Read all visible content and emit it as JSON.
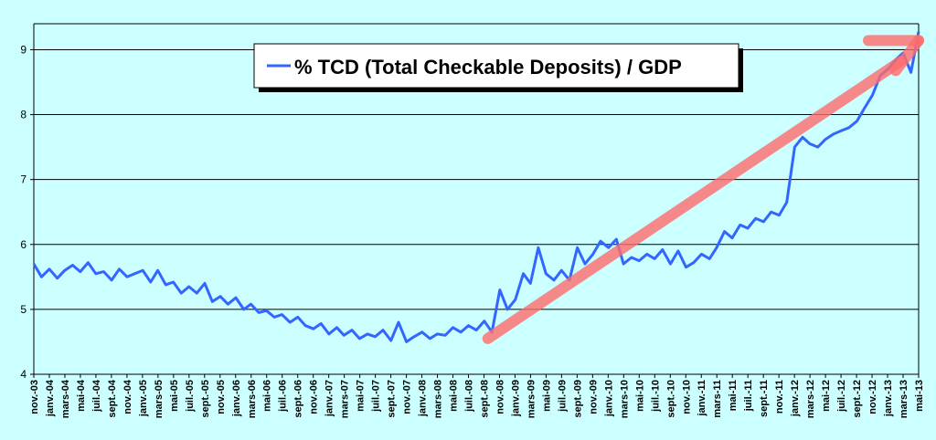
{
  "chart_data": {
    "type": "line",
    "title": "",
    "xlabel": "",
    "ylabel": "",
    "ylim": [
      4,
      9.4
    ],
    "yticks": [
      4,
      5,
      6,
      7,
      8,
      9
    ],
    "grid": "horizontal",
    "legend": {
      "placement": "top-center",
      "label": "% TCD (Total Checkable Deposits) / GDP",
      "color": "#3366ff"
    },
    "x_start": "2003-11",
    "x_end": "2013-05",
    "xtick_labels": [
      "nov.-03",
      "janv.-04",
      "mars-04",
      "mai-04",
      "juil.-04",
      "sept.-04",
      "nov.-04",
      "janv.-05",
      "mars-05",
      "mai-05",
      "juil.-05",
      "sept.-05",
      "nov.-05",
      "janv.-06",
      "mars-06",
      "mai-06",
      "juil.-06",
      "sept.-06",
      "nov.-06",
      "janv.-07",
      "mars-07",
      "mai-07",
      "juil.-07",
      "sept.-07",
      "nov.-07",
      "janv.-08",
      "mars-08",
      "mai-08",
      "juil.-08",
      "sept.-08",
      "nov.-08",
      "janv.-09",
      "mars-09",
      "mai-09",
      "juil.-09",
      "sept.-09",
      "nov.-09",
      "janv.-10",
      "mars-10",
      "mai-10",
      "juil.-10",
      "sept.-10",
      "nov.-10",
      "janv.-11",
      "mars-11",
      "mai-11",
      "juil.-11",
      "sept.-11",
      "nov.-11",
      "janv.-12",
      "mars-12",
      "mai-12",
      "juil.-12",
      "sept.-12",
      "nov.-12",
      "janv.-13",
      "mars-13",
      "mai-13"
    ],
    "series": [
      {
        "name": "% TCD (Total Checkable Deposits) / GDP",
        "color": "#3366ff",
        "points": [
          [
            "2003-11-01",
            5.7
          ],
          [
            "2003-12-01",
            5.5
          ],
          [
            "2004-01-01",
            5.62
          ],
          [
            "2004-02-01",
            5.48
          ],
          [
            "2004-03-01",
            5.6
          ],
          [
            "2004-04-01",
            5.68
          ],
          [
            "2004-05-01",
            5.58
          ],
          [
            "2004-06-01",
            5.72
          ],
          [
            "2004-07-01",
            5.55
          ],
          [
            "2004-08-01",
            5.58
          ],
          [
            "2004-09-01",
            5.45
          ],
          [
            "2004-10-01",
            5.62
          ],
          [
            "2004-11-01",
            5.5
          ],
          [
            "2004-12-01",
            5.55
          ],
          [
            "2005-01-01",
            5.6
          ],
          [
            "2005-02-01",
            5.42
          ],
          [
            "2005-03-01",
            5.6
          ],
          [
            "2005-04-01",
            5.38
          ],
          [
            "2005-05-01",
            5.42
          ],
          [
            "2005-06-01",
            5.25
          ],
          [
            "2005-07-01",
            5.35
          ],
          [
            "2005-08-01",
            5.25
          ],
          [
            "2005-09-01",
            5.4
          ],
          [
            "2005-10-01",
            5.12
          ],
          [
            "2005-11-01",
            5.2
          ],
          [
            "2005-12-01",
            5.08
          ],
          [
            "2006-01-01",
            5.18
          ],
          [
            "2006-02-01",
            5.0
          ],
          [
            "2006-03-01",
            5.08
          ],
          [
            "2006-04-01",
            4.95
          ],
          [
            "2006-05-01",
            4.98
          ],
          [
            "2006-06-01",
            4.88
          ],
          [
            "2006-07-01",
            4.92
          ],
          [
            "2006-08-01",
            4.8
          ],
          [
            "2006-09-01",
            4.88
          ],
          [
            "2006-10-01",
            4.75
          ],
          [
            "2006-11-01",
            4.7
          ],
          [
            "2006-12-01",
            4.78
          ],
          [
            "2007-01-01",
            4.62
          ],
          [
            "2007-02-01",
            4.72
          ],
          [
            "2007-03-01",
            4.6
          ],
          [
            "2007-04-01",
            4.68
          ],
          [
            "2007-05-01",
            4.55
          ],
          [
            "2007-06-01",
            4.62
          ],
          [
            "2007-07-01",
            4.58
          ],
          [
            "2007-08-01",
            4.68
          ],
          [
            "2007-09-01",
            4.52
          ],
          [
            "2007-10-01",
            4.8
          ],
          [
            "2007-11-01",
            4.5
          ],
          [
            "2007-12-01",
            4.58
          ],
          [
            "2008-01-01",
            4.65
          ],
          [
            "2008-02-01",
            4.55
          ],
          [
            "2008-03-01",
            4.62
          ],
          [
            "2008-04-01",
            4.6
          ],
          [
            "2008-05-01",
            4.72
          ],
          [
            "2008-06-01",
            4.65
          ],
          [
            "2008-07-01",
            4.75
          ],
          [
            "2008-08-01",
            4.68
          ],
          [
            "2008-09-01",
            4.82
          ],
          [
            "2008-10-01",
            4.65
          ],
          [
            "2008-11-01",
            5.3
          ],
          [
            "2008-12-01",
            5.0
          ],
          [
            "2009-01-01",
            5.15
          ],
          [
            "2009-02-01",
            5.55
          ],
          [
            "2009-03-01",
            5.4
          ],
          [
            "2009-04-01",
            5.95
          ],
          [
            "2009-05-01",
            5.55
          ],
          [
            "2009-06-01",
            5.45
          ],
          [
            "2009-07-01",
            5.6
          ],
          [
            "2009-08-01",
            5.45
          ],
          [
            "2009-09-01",
            5.95
          ],
          [
            "2009-10-01",
            5.7
          ],
          [
            "2009-11-01",
            5.85
          ],
          [
            "2009-12-01",
            6.05
          ],
          [
            "2010-01-01",
            5.95
          ],
          [
            "2010-02-01",
            6.08
          ],
          [
            "2010-03-01",
            5.7
          ],
          [
            "2010-04-01",
            5.8
          ],
          [
            "2010-05-01",
            5.75
          ],
          [
            "2010-06-01",
            5.85
          ],
          [
            "2010-07-01",
            5.78
          ],
          [
            "2010-08-01",
            5.92
          ],
          [
            "2010-09-01",
            5.7
          ],
          [
            "2010-10-01",
            5.9
          ],
          [
            "2010-11-01",
            5.65
          ],
          [
            "2010-12-01",
            5.72
          ],
          [
            "2011-01-01",
            5.85
          ],
          [
            "2011-02-01",
            5.78
          ],
          [
            "2011-03-01",
            5.95
          ],
          [
            "2011-04-01",
            6.2
          ],
          [
            "2011-05-01",
            6.1
          ],
          [
            "2011-06-01",
            6.3
          ],
          [
            "2011-07-01",
            6.25
          ],
          [
            "2011-08-01",
            6.4
          ],
          [
            "2011-09-01",
            6.35
          ],
          [
            "2011-10-01",
            6.5
          ],
          [
            "2011-11-01",
            6.45
          ],
          [
            "2011-12-01",
            6.65
          ],
          [
            "2012-01-01",
            7.5
          ],
          [
            "2012-02-01",
            7.65
          ],
          [
            "2012-03-01",
            7.55
          ],
          [
            "2012-04-01",
            7.5
          ],
          [
            "2012-05-01",
            7.62
          ],
          [
            "2012-06-01",
            7.7
          ],
          [
            "2012-07-01",
            7.75
          ],
          [
            "2012-08-01",
            7.8
          ],
          [
            "2012-09-01",
            7.9
          ],
          [
            "2012-10-01",
            8.1
          ],
          [
            "2012-11-01",
            8.3
          ],
          [
            "2012-12-01",
            8.6
          ],
          [
            "2013-01-01",
            8.7
          ],
          [
            "2013-02-01",
            8.85
          ],
          [
            "2013-03-01",
            8.95
          ],
          [
            "2013-04-01",
            8.65
          ],
          [
            "2013-05-01",
            9.28
          ]
        ]
      }
    ],
    "annotations": [
      {
        "type": "arrow",
        "color": "#ff6b6b",
        "from": [
          "2008-09-15",
          4.55
        ],
        "to": [
          "2013-05-01",
          9.1
        ]
      }
    ]
  }
}
